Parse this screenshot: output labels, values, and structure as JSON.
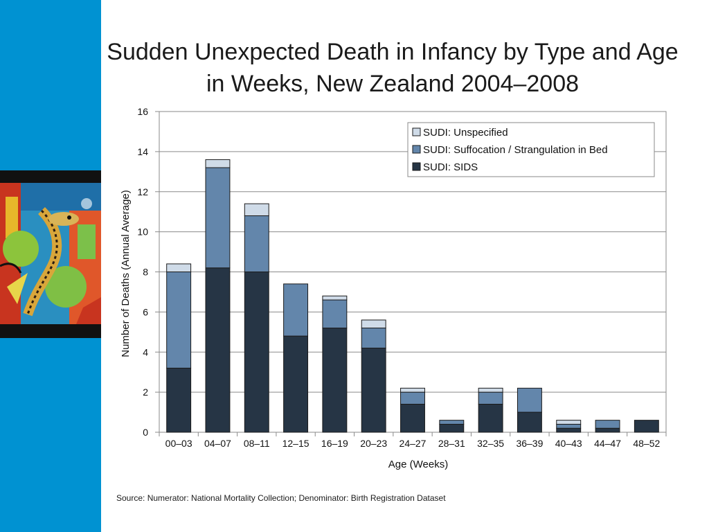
{
  "slide": {
    "title": "Sudden Unexpected Death in Infancy by Type and Age in Weeks, New Zealand 2004–2008",
    "source": "Source: Numerator: National Mortality Collection; Denominator: Birth Registration Dataset",
    "accent_color": "#0092d2"
  },
  "chart_data": {
    "type": "bar",
    "stacked": true,
    "xlabel": "Age (Weeks)",
    "ylabel": "Number of Deaths (Annual  Average)",
    "ylim": [
      0,
      16
    ],
    "yticks": [
      0,
      2,
      4,
      6,
      8,
      10,
      12,
      14,
      16
    ],
    "grid": true,
    "legend_position": "top-right",
    "categories": [
      "00–03",
      "04–07",
      "08–11",
      "12–15",
      "16–19",
      "20–23",
      "24–27",
      "28–31",
      "32–35",
      "36–39",
      "40–43",
      "44–47",
      "48–52"
    ],
    "series": [
      {
        "name": "SUDI: SIDS",
        "color": "#263545",
        "values": [
          3.2,
          8.2,
          8.0,
          4.8,
          5.2,
          4.2,
          1.4,
          0.4,
          1.4,
          1.0,
          0.2,
          0.2,
          0.6
        ]
      },
      {
        "name": "SUDI: Suffocation / Strangulation in Bed",
        "color": "#6386ab",
        "values": [
          4.8,
          5.0,
          2.8,
          2.6,
          1.4,
          1.0,
          0.6,
          0.2,
          0.6,
          1.2,
          0.2,
          0.4,
          0.0
        ]
      },
      {
        "name": "SUDI: Unspecified",
        "color": "#cfdbe8",
        "values": [
          0.4,
          0.4,
          0.6,
          0.0,
          0.2,
          0.4,
          0.2,
          0.0,
          0.2,
          0.0,
          0.2,
          0.0,
          0.0
        ]
      }
    ],
    "legend_order": [
      "SUDI: Unspecified",
      "SUDI: Suffocation / Strangulation in Bed",
      "SUDI: SIDS"
    ]
  }
}
